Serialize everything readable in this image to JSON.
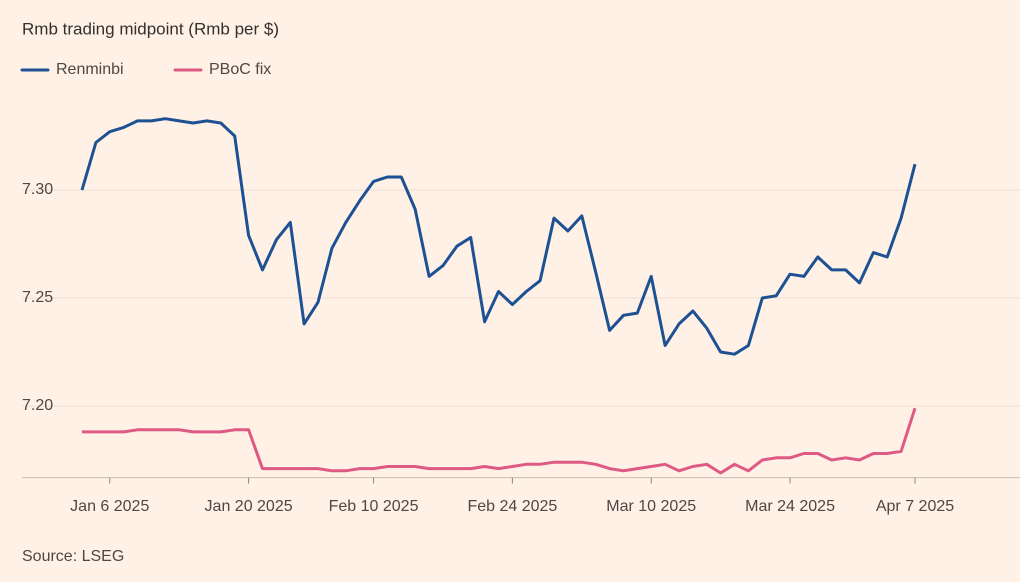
{
  "chart_data": {
    "type": "line",
    "title": "Rmb trading midpoint (Rmb per $)",
    "source": "Source: LSEG",
    "categories": [
      null,
      null,
      "Jan 6 2025",
      null,
      null,
      null,
      null,
      null,
      null,
      null,
      null,
      null,
      "Jan 20 2025",
      null,
      null,
      null,
      null,
      null,
      null,
      null,
      null,
      "Feb 10 2025",
      null,
      null,
      null,
      null,
      null,
      null,
      null,
      null,
      null,
      "Feb 24 2025",
      null,
      null,
      null,
      null,
      null,
      null,
      null,
      null,
      null,
      "Mar 10 2025",
      null,
      null,
      null,
      null,
      null,
      null,
      null,
      null,
      null,
      "Mar 24 2025",
      null,
      null,
      null,
      null,
      null,
      null,
      null,
      null,
      "Apr 7 2025"
    ],
    "series": [
      {
        "name": "Renminbi",
        "color": "#1d5193",
        "values": [
          7.3,
          7.322,
          7.327,
          7.329,
          7.332,
          7.332,
          7.333,
          7.332,
          7.331,
          7.332,
          7.331,
          7.325,
          7.279,
          7.263,
          7.277,
          7.285,
          7.238,
          7.248,
          7.273,
          7.285,
          7.295,
          7.304,
          7.306,
          7.306,
          7.291,
          7.26,
          7.265,
          7.274,
          7.278,
          7.239,
          7.253,
          7.247,
          7.253,
          7.258,
          7.287,
          7.281,
          7.288,
          7.262,
          7.235,
          7.242,
          7.243,
          7.26,
          7.228,
          7.238,
          7.244,
          7.236,
          7.225,
          7.224,
          7.228,
          7.25,
          7.251,
          7.261,
          7.26,
          7.269,
          7.263,
          7.263,
          7.257,
          7.271,
          7.269,
          7.287,
          7.312
        ]
      },
      {
        "name": "PBoC fix",
        "color": "#de5a84",
        "values": [
          7.188,
          7.188,
          7.188,
          7.188,
          7.189,
          7.189,
          7.189,
          7.189,
          7.188,
          7.188,
          7.188,
          7.189,
          7.189,
          7.171,
          7.171,
          7.171,
          7.171,
          7.171,
          7.17,
          7.17,
          7.171,
          7.171,
          7.172,
          7.172,
          7.172,
          7.171,
          7.171,
          7.171,
          7.171,
          7.172,
          7.171,
          7.172,
          7.173,
          7.173,
          7.174,
          7.174,
          7.174,
          7.173,
          7.171,
          7.17,
          7.171,
          7.172,
          7.173,
          7.17,
          7.172,
          7.173,
          7.169,
          7.173,
          7.17,
          7.175,
          7.176,
          7.176,
          7.178,
          7.178,
          7.175,
          7.176,
          7.175,
          7.178,
          7.178,
          7.179,
          7.199
        ]
      }
    ],
    "ylim": [
      7.165,
      7.34
    ],
    "yticks": [
      {
        "value": 7.2,
        "label": "7.20"
      },
      {
        "value": 7.25,
        "label": "7.25"
      },
      {
        "value": 7.3,
        "label": "7.30"
      }
    ],
    "grid": true,
    "legend": "top-left"
  }
}
